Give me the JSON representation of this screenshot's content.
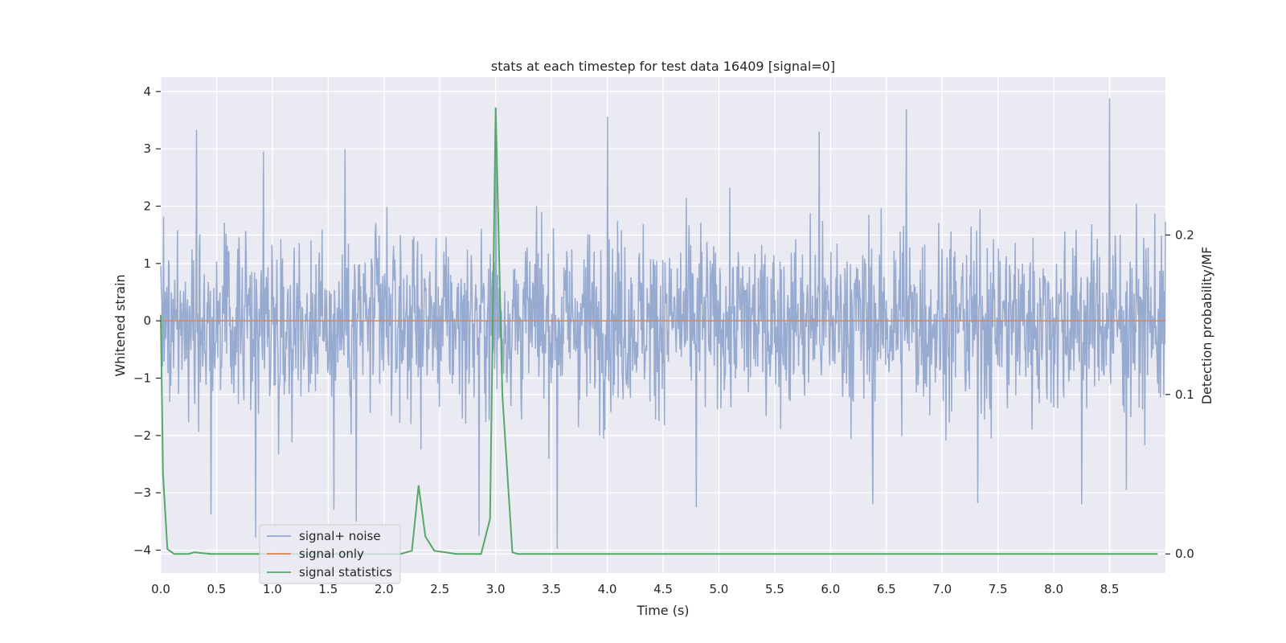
{
  "chart_data": {
    "type": "line",
    "title": "stats at each timestep for test data 16409 [signal=0]",
    "xlabel": "Time (s)",
    "ylabel": "Whitened strain",
    "y2label": "Detection probability/MF",
    "xlim": [
      0,
      9.0
    ],
    "ylim": [
      -4.4,
      4.25
    ],
    "y2lim": [
      -0.012,
      0.299
    ],
    "x_ticks": [
      0.0,
      0.5,
      1.0,
      1.5,
      2.0,
      2.5,
      3.0,
      3.5,
      4.0,
      4.5,
      5.0,
      5.5,
      6.0,
      6.5,
      7.0,
      7.5,
      8.0,
      8.5
    ],
    "y_ticks": [
      -4,
      -3,
      -2,
      -1,
      0,
      1,
      2,
      3,
      4
    ],
    "y2_ticks": [
      0.0,
      0.1,
      0.2
    ],
    "x_tick_labels": [
      "0.0",
      "0.5",
      "1.0",
      "1.5",
      "2.0",
      "2.5",
      "3.0",
      "3.5",
      "4.0",
      "4.5",
      "5.0",
      "5.5",
      "6.0",
      "6.5",
      "7.0",
      "7.5",
      "8.0",
      "8.5"
    ],
    "y_tick_labels": [
      "−4",
      "−3",
      "−2",
      "−1",
      "0",
      "1",
      "2",
      "3",
      "4"
    ],
    "y2_tick_labels": [
      "0.0",
      "0.1",
      "0.2"
    ],
    "grid": true,
    "legend_position": "lower-left",
    "series": [
      {
        "name": "signal+ noise",
        "axis": "left",
        "color": "#92a6cc",
        "description_of_values": "dense whitened noise, roughly within [-2, 2.3] with spikes",
        "x_range": [
          0,
          9.0
        ],
        "peaks_high": [
          [
            0.32,
            3.33
          ],
          [
            0.92,
            2.95
          ],
          [
            1.65,
            3.0
          ],
          [
            3.0,
            3.4
          ],
          [
            4.0,
            3.56
          ],
          [
            5.9,
            3.3
          ],
          [
            6.68,
            3.69
          ],
          [
            8.5,
            3.88
          ]
        ],
        "peaks_low": [
          [
            0.45,
            -3.38
          ],
          [
            0.85,
            -3.78
          ],
          [
            1.55,
            -3.3
          ],
          [
            1.75,
            -3.5
          ],
          [
            2.85,
            -3.75
          ],
          [
            3.55,
            -3.98
          ],
          [
            4.8,
            -3.25
          ],
          [
            6.38,
            -3.2
          ],
          [
            7.32,
            -3.18
          ],
          [
            8.25,
            -3.2
          ],
          [
            8.65,
            -2.95
          ]
        ]
      },
      {
        "name": "signal only",
        "axis": "left",
        "color": "#dd8452",
        "x": [
          0,
          9.0
        ],
        "y": [
          0,
          0
        ]
      },
      {
        "name": "signal statistics",
        "axis": "right",
        "color": "#55a868",
        "x": [
          0.0,
          0.02,
          0.06,
          0.12,
          0.25,
          0.3,
          0.45,
          2.15,
          2.25,
          2.31,
          2.37,
          2.45,
          2.55,
          2.65,
          2.87,
          2.95,
          3.0,
          3.06,
          3.15,
          3.2,
          8.93
        ],
        "y": [
          0.15,
          0.05,
          0.003,
          0.0,
          0.0,
          0.001,
          0.0,
          0.0,
          0.002,
          0.043,
          0.011,
          0.002,
          0.001,
          0.0,
          0.0,
          0.022,
          0.28,
          0.1,
          0.001,
          0.0,
          0.0
        ]
      }
    ]
  }
}
